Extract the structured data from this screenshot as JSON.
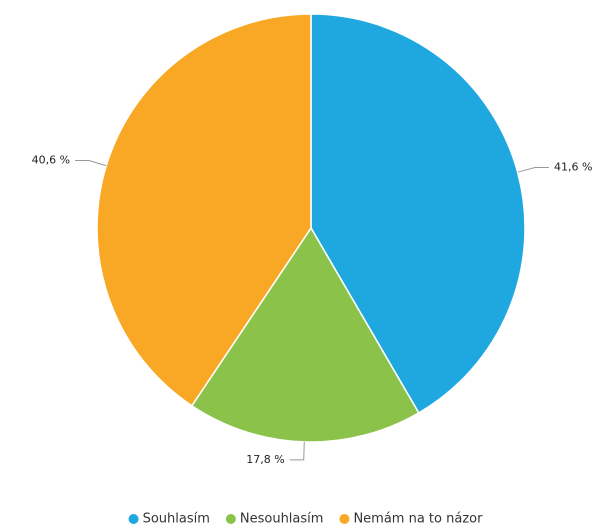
{
  "chart_data": {
    "type": "pie",
    "categories": [
      "Souhlasím",
      "Nesouhlasím",
      "Nemám na to názor"
    ],
    "values": [
      41.6,
      17.8,
      40.6
    ],
    "value_labels": [
      "41,6 %",
      "17,8 %",
      "40,6 %"
    ],
    "colors": [
      "#1fa8e0",
      "#8bc34a",
      "#f9a825"
    ],
    "legend": "bottom"
  }
}
